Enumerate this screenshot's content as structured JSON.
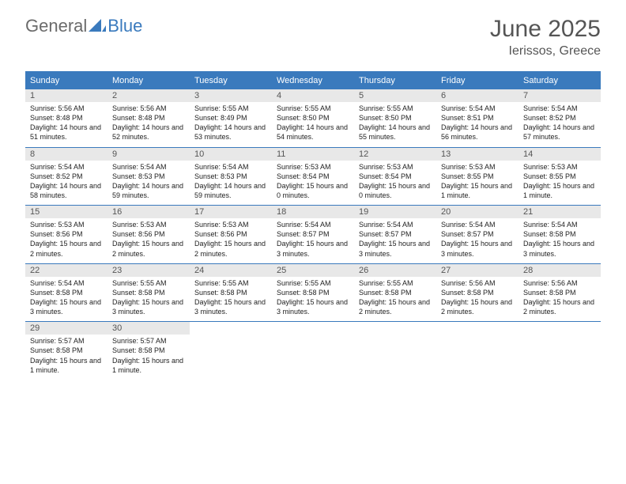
{
  "logo": {
    "general": "General",
    "blue": "Blue"
  },
  "title": "June 2025",
  "location": "Ierissos, Greece",
  "colors": {
    "header_blue": "#3a7abd",
    "daynum_bg": "#e8e8e8",
    "text_gray": "#555555",
    "body_text": "#222222",
    "background": "#ffffff"
  },
  "dow": [
    "Sunday",
    "Monday",
    "Tuesday",
    "Wednesday",
    "Thursday",
    "Friday",
    "Saturday"
  ],
  "weeks": [
    [
      {
        "n": "1",
        "sr": "5:56 AM",
        "ss": "8:48 PM",
        "dl": "14 hours and 51 minutes."
      },
      {
        "n": "2",
        "sr": "5:56 AM",
        "ss": "8:48 PM",
        "dl": "14 hours and 52 minutes."
      },
      {
        "n": "3",
        "sr": "5:55 AM",
        "ss": "8:49 PM",
        "dl": "14 hours and 53 minutes."
      },
      {
        "n": "4",
        "sr": "5:55 AM",
        "ss": "8:50 PM",
        "dl": "14 hours and 54 minutes."
      },
      {
        "n": "5",
        "sr": "5:55 AM",
        "ss": "8:50 PM",
        "dl": "14 hours and 55 minutes."
      },
      {
        "n": "6",
        "sr": "5:54 AM",
        "ss": "8:51 PM",
        "dl": "14 hours and 56 minutes."
      },
      {
        "n": "7",
        "sr": "5:54 AM",
        "ss": "8:52 PM",
        "dl": "14 hours and 57 minutes."
      }
    ],
    [
      {
        "n": "8",
        "sr": "5:54 AM",
        "ss": "8:52 PM",
        "dl": "14 hours and 58 minutes."
      },
      {
        "n": "9",
        "sr": "5:54 AM",
        "ss": "8:53 PM",
        "dl": "14 hours and 59 minutes."
      },
      {
        "n": "10",
        "sr": "5:54 AM",
        "ss": "8:53 PM",
        "dl": "14 hours and 59 minutes."
      },
      {
        "n": "11",
        "sr": "5:53 AM",
        "ss": "8:54 PM",
        "dl": "15 hours and 0 minutes."
      },
      {
        "n": "12",
        "sr": "5:53 AM",
        "ss": "8:54 PM",
        "dl": "15 hours and 0 minutes."
      },
      {
        "n": "13",
        "sr": "5:53 AM",
        "ss": "8:55 PM",
        "dl": "15 hours and 1 minute."
      },
      {
        "n": "14",
        "sr": "5:53 AM",
        "ss": "8:55 PM",
        "dl": "15 hours and 1 minute."
      }
    ],
    [
      {
        "n": "15",
        "sr": "5:53 AM",
        "ss": "8:56 PM",
        "dl": "15 hours and 2 minutes."
      },
      {
        "n": "16",
        "sr": "5:53 AM",
        "ss": "8:56 PM",
        "dl": "15 hours and 2 minutes."
      },
      {
        "n": "17",
        "sr": "5:53 AM",
        "ss": "8:56 PM",
        "dl": "15 hours and 2 minutes."
      },
      {
        "n": "18",
        "sr": "5:54 AM",
        "ss": "8:57 PM",
        "dl": "15 hours and 3 minutes."
      },
      {
        "n": "19",
        "sr": "5:54 AM",
        "ss": "8:57 PM",
        "dl": "15 hours and 3 minutes."
      },
      {
        "n": "20",
        "sr": "5:54 AM",
        "ss": "8:57 PM",
        "dl": "15 hours and 3 minutes."
      },
      {
        "n": "21",
        "sr": "5:54 AM",
        "ss": "8:58 PM",
        "dl": "15 hours and 3 minutes."
      }
    ],
    [
      {
        "n": "22",
        "sr": "5:54 AM",
        "ss": "8:58 PM",
        "dl": "15 hours and 3 minutes."
      },
      {
        "n": "23",
        "sr": "5:55 AM",
        "ss": "8:58 PM",
        "dl": "15 hours and 3 minutes."
      },
      {
        "n": "24",
        "sr": "5:55 AM",
        "ss": "8:58 PM",
        "dl": "15 hours and 3 minutes."
      },
      {
        "n": "25",
        "sr": "5:55 AM",
        "ss": "8:58 PM",
        "dl": "15 hours and 3 minutes."
      },
      {
        "n": "26",
        "sr": "5:55 AM",
        "ss": "8:58 PM",
        "dl": "15 hours and 2 minutes."
      },
      {
        "n": "27",
        "sr": "5:56 AM",
        "ss": "8:58 PM",
        "dl": "15 hours and 2 minutes."
      },
      {
        "n": "28",
        "sr": "5:56 AM",
        "ss": "8:58 PM",
        "dl": "15 hours and 2 minutes."
      }
    ],
    [
      {
        "n": "29",
        "sr": "5:57 AM",
        "ss": "8:58 PM",
        "dl": "15 hours and 1 minute."
      },
      {
        "n": "30",
        "sr": "5:57 AM",
        "ss": "8:58 PM",
        "dl": "15 hours and 1 minute."
      },
      null,
      null,
      null,
      null,
      null
    ]
  ],
  "labels": {
    "sunrise": "Sunrise:",
    "sunset": "Sunset:",
    "daylight": "Daylight:"
  }
}
